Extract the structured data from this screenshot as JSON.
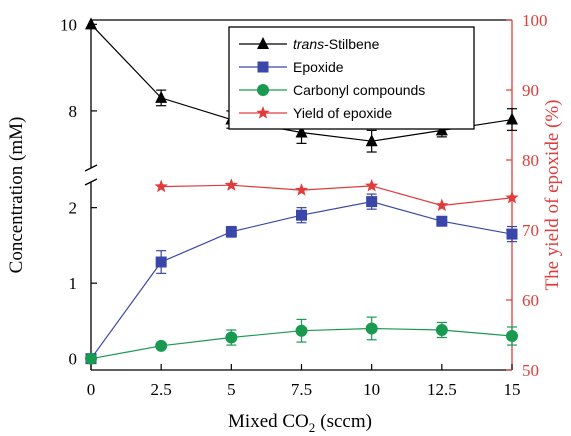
{
  "chart_data": {
    "type": "line",
    "x": [
      0,
      2.5,
      5,
      7.5,
      10,
      12.5,
      15
    ],
    "x_ticks": [
      "0",
      "2.5",
      "5",
      "7.5",
      "10",
      "12.5",
      "15"
    ],
    "xlabel_main": "Mixed CO",
    "xlabel_sub": "2",
    "xlabel_unit": "(sccm)",
    "xlim": [
      0,
      15
    ],
    "ylabel_left": "Concentration (mM)",
    "ylabel_right": "The yield of epoxide (%)",
    "y_left_axis_break": true,
    "y_left_lower_ticks": [
      "0",
      "1",
      "2"
    ],
    "y_left_upper_ticks": [
      "8",
      "10"
    ],
    "y_left_lower_range": [
      -0.15,
      2.3
    ],
    "y_left_upper_range": [
      6.75,
      10.1
    ],
    "y_right_ticks": [
      "50",
      "60",
      "70",
      "80",
      "90",
      "100"
    ],
    "y_right_range": [
      50,
      100
    ],
    "grid": false,
    "legend_position": "top-right",
    "series": [
      {
        "name_italic": "trans",
        "name": "-Stilbene",
        "axis": "left",
        "marker": "triangle",
        "color": "#000000",
        "values": [
          10.0,
          8.3,
          7.8,
          7.5,
          7.3,
          7.55,
          7.8
        ],
        "errors": [
          0,
          0.18,
          0.2,
          0.25,
          0.25,
          0.15,
          0.25
        ]
      },
      {
        "name": "Epoxide",
        "axis": "left",
        "marker": "square",
        "color": "#3a46a8",
        "values": [
          0.0,
          1.28,
          1.68,
          1.9,
          2.08,
          1.82,
          1.65
        ],
        "errors": [
          0,
          0.15,
          0.07,
          0.1,
          0.1,
          0.05,
          0.1
        ]
      },
      {
        "name": "Carbonyl compounds",
        "axis": "left",
        "marker": "circle",
        "color": "#1a9a50",
        "values": [
          0.0,
          0.17,
          0.28,
          0.37,
          0.4,
          0.38,
          0.3
        ],
        "errors": [
          0,
          0.03,
          0.1,
          0.15,
          0.15,
          0.1,
          0.12
        ]
      },
      {
        "name": "Yield of epoxide",
        "axis": "right",
        "marker": "star",
        "color": "#e03c3c",
        "x": [
          2.5,
          5,
          7.5,
          10,
          12.5,
          15
        ],
        "values": [
          76.2,
          76.4,
          75.7,
          76.3,
          73.5,
          74.6
        ]
      }
    ]
  },
  "colors": {
    "axis": "#000000",
    "right_axis": "#e03c3c"
  }
}
